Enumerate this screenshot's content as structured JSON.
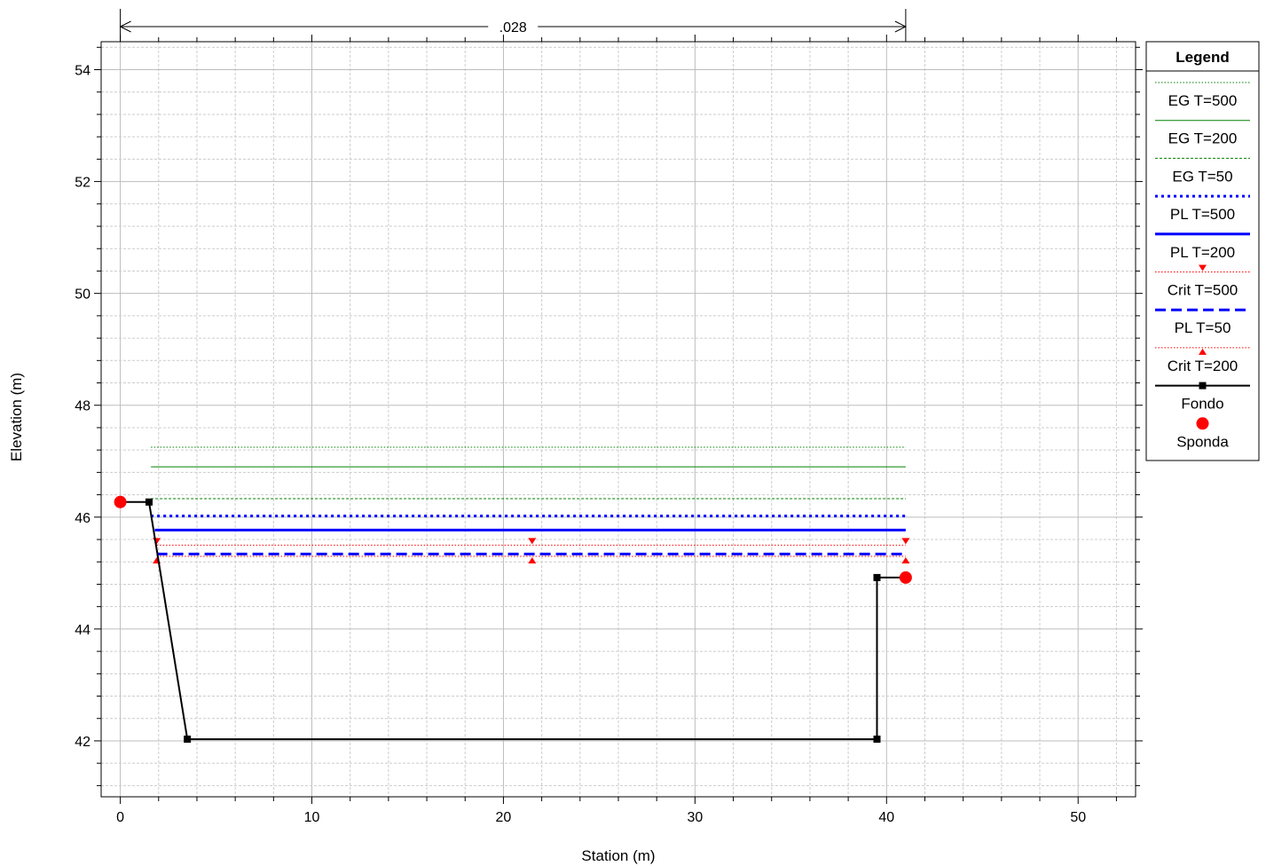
{
  "chart_data": {
    "type": "line",
    "xlabel": "Station (m)",
    "ylabel": "Elevation (m)",
    "xlim": [
      -1,
      53
    ],
    "ylim": [
      41,
      54.5
    ],
    "x_ticks": [
      0,
      10,
      20,
      30,
      40,
      50
    ],
    "y_ticks": [
      42,
      44,
      46,
      48,
      50,
      52,
      54
    ],
    "x_minor_step": 2,
    "y_minor_step": 0.4,
    "grid": true,
    "annotation": {
      "text": ".028",
      "x_start": 0,
      "x_end": 41
    },
    "legend": {
      "title": "Legend",
      "placement": "right"
    },
    "series": [
      {
        "name": "EG T=500",
        "style": "dotted",
        "color": "#008000",
        "width": 1,
        "marker": "none",
        "x": [
          1.6,
          41
        ],
        "y": [
          47.25,
          47.25
        ]
      },
      {
        "name": "EG T=200",
        "style": "solid",
        "color": "#008000",
        "width": 1,
        "marker": "none",
        "x": [
          1.6,
          41
        ],
        "y": [
          46.9,
          46.9
        ]
      },
      {
        "name": "EG T=50",
        "style": "dashed-fine",
        "color": "#008000",
        "width": 1,
        "marker": "none",
        "x": [
          1.6,
          41
        ],
        "y": [
          46.33,
          46.33
        ]
      },
      {
        "name": "PL T=500",
        "style": "dotted",
        "color": "#0000ff",
        "width": 3,
        "marker": "none",
        "x": [
          1.6,
          41
        ],
        "y": [
          46.02,
          46.02
        ]
      },
      {
        "name": "PL T=200",
        "style": "solid",
        "color": "#0000ff",
        "width": 3,
        "marker": "none",
        "x": [
          1.8,
          41
        ],
        "y": [
          45.77,
          45.77
        ]
      },
      {
        "name": "Crit T=500",
        "style": "dotted",
        "color": "#ff0000",
        "width": 1,
        "marker": "triangle-down",
        "x": [
          1.9,
          21.5,
          41
        ],
        "y": [
          45.5,
          45.5,
          45.5
        ]
      },
      {
        "name": "PL T=50",
        "style": "dashed",
        "color": "#0000ff",
        "width": 3,
        "marker": "none",
        "x": [
          1.9,
          41
        ],
        "y": [
          45.34,
          45.34
        ]
      },
      {
        "name": "Crit T=200",
        "style": "dotted",
        "color": "#ff0000",
        "width": 1,
        "marker": "triangle-up",
        "x": [
          1.9,
          21.5,
          41
        ],
        "y": [
          45.3,
          45.3,
          45.3
        ]
      },
      {
        "name": "Fondo",
        "style": "solid",
        "color": "#000000",
        "width": 2,
        "marker": "square",
        "x": [
          0,
          1.5,
          3.5,
          39.5,
          39.5,
          41
        ],
        "y": [
          46.27,
          46.27,
          42.03,
          42.03,
          44.92,
          44.92
        ]
      },
      {
        "name": "Sponda",
        "style": "none",
        "color": "#ff0000",
        "width": 0,
        "marker": "circle",
        "x": [
          0,
          41
        ],
        "y": [
          46.27,
          44.92
        ]
      }
    ]
  }
}
